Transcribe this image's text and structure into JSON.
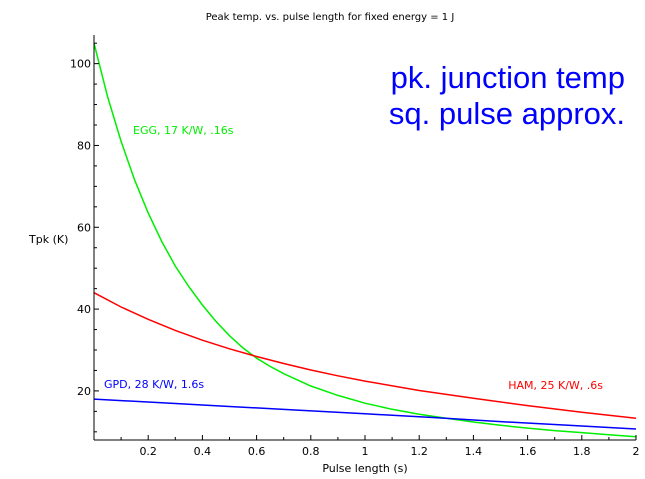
{
  "chart_data": {
    "type": "line",
    "title": "Peak temp. vs. pulse length for fixed energy = 1 J",
    "xlabel": "Pulse length (s)",
    "ylabel": "Tpk (K)",
    "xlim": [
      0,
      2
    ],
    "ylim": [
      8,
      107
    ],
    "x_ticks": [
      "0.2",
      "0.4",
      "0.6",
      "0.8",
      "1",
      "1.2",
      "1.4",
      "1.6",
      "1.8",
      "2"
    ],
    "y_ticks": [
      "20",
      "40",
      "60",
      "80",
      "100"
    ],
    "x_tick_values": [
      0.2,
      0.4,
      0.6,
      0.8,
      1,
      1.2,
      1.4,
      1.6,
      1.8,
      2
    ],
    "y_tick_values": [
      20,
      40,
      60,
      80,
      100
    ],
    "grid": false,
    "annotation": [
      "pk. junction temp",
      "sq. pulse approx."
    ],
    "annotation_color": "#0000ff",
    "series": [
      {
        "name": "EGG, 17 K/W, .16s",
        "color": "#00ee00",
        "x": [
          0.0,
          0.05,
          0.1,
          0.15,
          0.2,
          0.25,
          0.3,
          0.35,
          0.4,
          0.45,
          0.5,
          0.55,
          0.6,
          0.65,
          0.7,
          0.8,
          0.9,
          1.0,
          1.1,
          1.2,
          1.3,
          1.4,
          1.5,
          1.6,
          1.7,
          1.8,
          1.9,
          2.0
        ],
        "y": [
          105,
          92,
          81,
          71.5,
          63.5,
          56.5,
          50.5,
          45.5,
          41,
          37,
          33.5,
          30.5,
          28,
          26,
          24.2,
          21.2,
          18.9,
          17,
          15.5,
          14.3,
          13.3,
          12.4,
          11.6,
          10.9,
          10.3,
          9.8,
          9.3,
          8.8
        ]
      },
      {
        "name": "HAM, 25 K/W, .6s",
        "color": "#ff0000",
        "x": [
          0.0,
          0.1,
          0.2,
          0.3,
          0.4,
          0.5,
          0.6,
          0.7,
          0.8,
          0.9,
          1.0,
          1.2,
          1.4,
          1.6,
          1.8,
          2.0
        ],
        "y": [
          44,
          40.5,
          37.5,
          34.8,
          32.4,
          30.3,
          28.4,
          26.7,
          25.1,
          23.7,
          22.4,
          20.1,
          18.2,
          16.4,
          14.8,
          13.3
        ]
      },
      {
        "name": "GPD, 28 K/W, 1.6s",
        "color": "#0000ff",
        "x": [
          0.0,
          0.25,
          0.5,
          0.75,
          1.0,
          1.25,
          1.5,
          1.75,
          2.0
        ],
        "y": [
          18,
          17.1,
          16.2,
          15.3,
          14.4,
          13.5,
          12.5,
          11.6,
          10.7
        ]
      }
    ]
  }
}
